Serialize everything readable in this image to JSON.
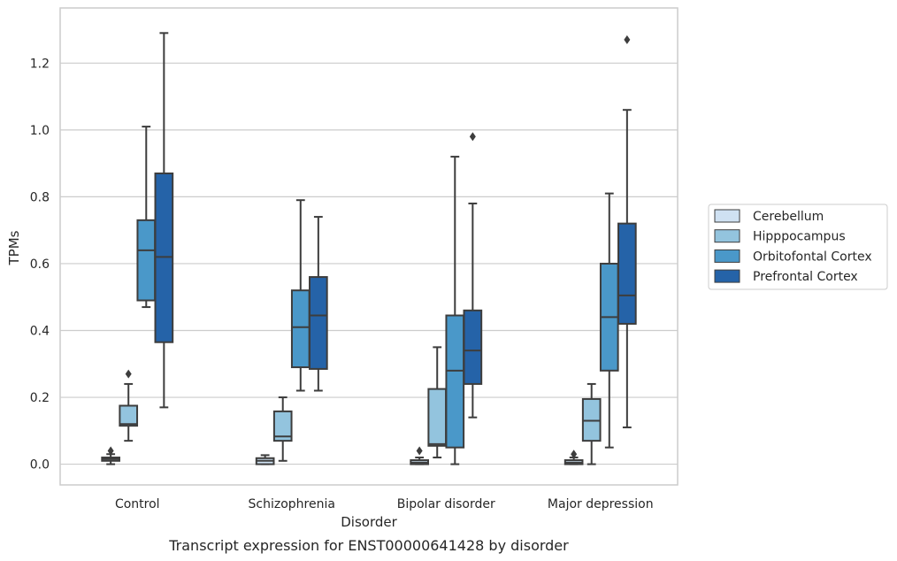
{
  "caption": "Transcript expression for ENST00000641428 by disorder",
  "chart_data": {
    "type": "box",
    "xlabel": "Disorder",
    "ylabel": "TPMs",
    "ylim": [
      -0.062,
      1.365
    ],
    "yticks": [
      0.0,
      0.2,
      0.4,
      0.6,
      0.8,
      1.0,
      1.2
    ],
    "ytick_labels": [
      "0.0",
      "0.2",
      "0.4",
      "0.6",
      "0.8",
      "1.0",
      "1.2"
    ],
    "grid": "horizontal",
    "legend_position": "right",
    "categories": [
      "Control",
      "Schizophrenia",
      "Bipolar disorder",
      "Major depression"
    ],
    "series": [
      {
        "name": "Cerebellum",
        "color": "#cfe1f2",
        "boxes": [
          {
            "q1": 0.01,
            "median": 0.015,
            "q3": 0.02,
            "whislo": 0.0,
            "whishi": 0.03,
            "fliers": [
              0.04
            ]
          },
          {
            "q1": 0.0,
            "median": 0.01,
            "q3": 0.018,
            "whislo": 0.0,
            "whishi": 0.027,
            "fliers": []
          },
          {
            "q1": 0.0,
            "median": 0.005,
            "q3": 0.012,
            "whislo": 0.0,
            "whishi": 0.02,
            "fliers": [
              0.04
            ]
          },
          {
            "q1": 0.0,
            "median": 0.005,
            "q3": 0.012,
            "whislo": 0.0,
            "whishi": 0.02,
            "fliers": [
              0.03
            ]
          }
        ]
      },
      {
        "name": "Hipppocampus",
        "color": "#93c4de",
        "boxes": [
          {
            "q1": 0.115,
            "median": 0.12,
            "q3": 0.175,
            "whislo": 0.07,
            "whishi": 0.24,
            "fliers": [
              0.27
            ]
          },
          {
            "q1": 0.07,
            "median": 0.083,
            "q3": 0.158,
            "whislo": 0.01,
            "whishi": 0.2,
            "fliers": []
          },
          {
            "q1": 0.055,
            "median": 0.06,
            "q3": 0.225,
            "whislo": 0.02,
            "whishi": 0.35,
            "fliers": []
          },
          {
            "q1": 0.07,
            "median": 0.13,
            "q3": 0.195,
            "whislo": 0.0,
            "whishi": 0.24,
            "fliers": []
          }
        ]
      },
      {
        "name": "Orbitofontal Cortex",
        "color": "#4a98c9",
        "boxes": [
          {
            "q1": 0.49,
            "median": 0.64,
            "q3": 0.73,
            "whislo": 0.47,
            "whishi": 1.01,
            "fliers": []
          },
          {
            "q1": 0.29,
            "median": 0.41,
            "q3": 0.52,
            "whislo": 0.22,
            "whishi": 0.79,
            "fliers": []
          },
          {
            "q1": 0.05,
            "median": 0.28,
            "q3": 0.445,
            "whislo": 0.0,
            "whishi": 0.92,
            "fliers": []
          },
          {
            "q1": 0.28,
            "median": 0.44,
            "q3": 0.6,
            "whislo": 0.05,
            "whishi": 0.81,
            "fliers": []
          }
        ]
      },
      {
        "name": "Prefrontal Cortex",
        "color": "#2563a8",
        "boxes": [
          {
            "q1": 0.365,
            "median": 0.62,
            "q3": 0.87,
            "whislo": 0.17,
            "whishi": 1.29,
            "fliers": []
          },
          {
            "q1": 0.285,
            "median": 0.445,
            "q3": 0.56,
            "whislo": 0.22,
            "whishi": 0.74,
            "fliers": []
          },
          {
            "q1": 0.24,
            "median": 0.34,
            "q3": 0.46,
            "whislo": 0.14,
            "whishi": 0.78,
            "fliers": [
              0.98
            ]
          },
          {
            "q1": 0.42,
            "median": 0.505,
            "q3": 0.72,
            "whislo": 0.11,
            "whishi": 1.06,
            "fliers": [
              1.27
            ]
          }
        ]
      }
    ]
  }
}
